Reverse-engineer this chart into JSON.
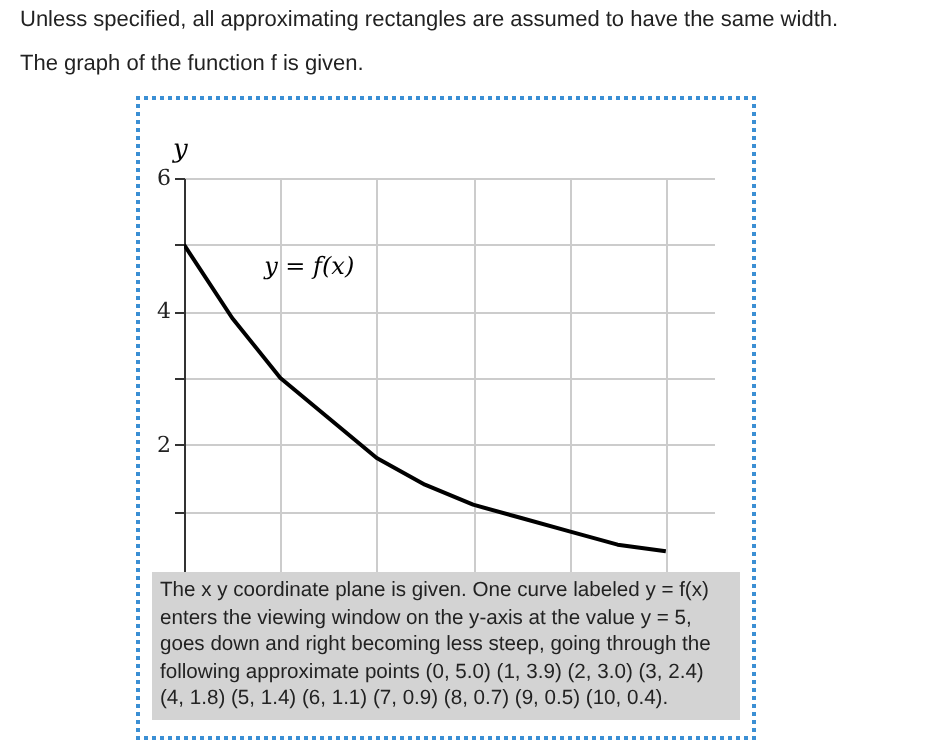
{
  "chart_data": {
    "type": "line",
    "title": "Unless specified, all approximating rectangles are assumed to have the same width.",
    "subtitle": "The graph of the function f is given.",
    "ylabel": "y",
    "categories": [
      null,
      null,
      null,
      null,
      null,
      null,
      null,
      null,
      null,
      null,
      null
    ],
    "series": [
      {
        "name": "y = f(x)",
        "color": "#000000",
        "values": [
          5.0,
          3.9,
          3.0,
          2.4,
          1.8,
          1.4,
          1.1,
          0.9,
          0.7,
          0.5,
          0.4
        ]
      }
    ],
    "ylim": [
      0,
      6
    ],
    "yticks": [
      {
        "value": 1,
        "label": null
      },
      2,
      {
        "value": 3,
        "label": null
      },
      4,
      {
        "value": 5,
        "label": null
      },
      6
    ],
    "grid": true,
    "tick_labels": "y",
    "marker": "none",
    "line_style": "solid",
    "legend": false,
    "annotations": [
      "The x y coordinate plane is given. One curve labeled y = f(x) enters the viewing window on the y-axis at the value y = 5, goes down and right becoming less steep, going through the following approximate points (0, 5.0) (1, 3.9) (2, 3.0) (3, 2.4) (4, 1.8) (5, 1.4) (6, 1.1) (7, 0.9) (8, 0.7) (9, 0.5) (10, 0.4)."
    ]
  }
}
